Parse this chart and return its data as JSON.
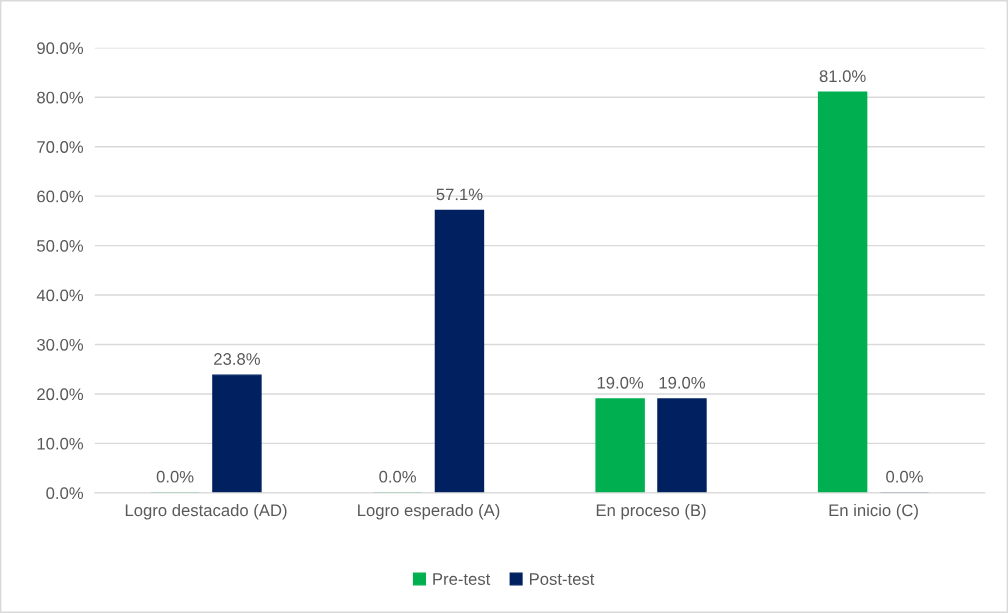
{
  "chart_data": {
    "type": "bar",
    "categories": [
      "Logro destacado (AD)",
      "Logro esperado (A)",
      "En proceso (B)",
      "En inicio (C)"
    ],
    "series": [
      {
        "name": "Pre-test",
        "color": "#00b050",
        "values": [
          0,
          0,
          19.0,
          81.0
        ],
        "value_labels": [
          "0.0%",
          "0.0%",
          "19.0%",
          "81.0%"
        ]
      },
      {
        "name": "Post-test",
        "color": "#002060",
        "values": [
          23.8,
          57.1,
          19.0,
          0
        ],
        "value_labels": [
          "23.8%",
          "57.1%",
          "19.0%",
          "0.0%"
        ]
      }
    ],
    "ylim": [
      0,
      90
    ],
    "yticks": [
      {
        "value": 0,
        "label": "0.0%"
      },
      {
        "value": 10,
        "label": "10.0%"
      },
      {
        "value": 20,
        "label": "20.0%"
      },
      {
        "value": 30,
        "label": "30.0%"
      },
      {
        "value": 40,
        "label": "40.0%"
      },
      {
        "value": 50,
        "label": "50.0%"
      },
      {
        "value": 60,
        "label": "60.0%"
      },
      {
        "value": 70,
        "label": "70.0%"
      },
      {
        "value": 80,
        "label": "80.0%"
      },
      {
        "value": 90,
        "label": "90.0%"
      }
    ],
    "grid": "y",
    "legend": "bottom"
  }
}
